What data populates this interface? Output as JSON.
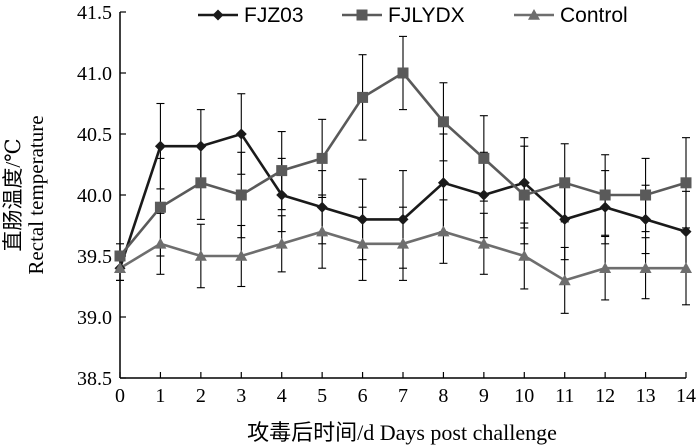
{
  "chart_data": {
    "type": "line",
    "x": [
      0,
      1,
      2,
      3,
      4,
      5,
      6,
      7,
      8,
      9,
      10,
      11,
      12,
      13,
      14
    ],
    "series": [
      {
        "name": "FJZ03",
        "marker": "diamond",
        "color": "#1a1a1a",
        "values": [
          39.4,
          40.4,
          40.4,
          40.5,
          40.0,
          39.9,
          39.8,
          39.8,
          40.1,
          40.0,
          40.1,
          39.8,
          39.9,
          39.8,
          39.7
        ],
        "errors": [
          0.1,
          0.35,
          0.3,
          0.33,
          0.3,
          0.3,
          0.33,
          0.4,
          0.4,
          0.35,
          0.37,
          0.33,
          0.3,
          0.28,
          0.33
        ]
      },
      {
        "name": "FJLYDX",
        "marker": "square",
        "color": "#5a5a5a",
        "values": [
          39.5,
          39.9,
          40.1,
          40.0,
          40.2,
          40.3,
          40.8,
          41.0,
          40.6,
          40.3,
          40.0,
          40.1,
          40.0,
          40.0,
          40.1
        ],
        "errors": [
          0.1,
          0.4,
          0.3,
          0.35,
          0.32,
          0.32,
          0.35,
          0.3,
          0.32,
          0.35,
          0.4,
          0.32,
          0.33,
          0.3,
          0.37
        ]
      },
      {
        "name": "Control",
        "marker": "triangle",
        "color": "#6e6e6e",
        "values": [
          39.4,
          39.6,
          39.5,
          39.5,
          39.6,
          39.7,
          39.6,
          39.6,
          39.7,
          39.6,
          39.5,
          39.3,
          39.4,
          39.4,
          39.4
        ],
        "errors": [
          0.1,
          0.25,
          0.26,
          0.25,
          0.23,
          0.3,
          0.3,
          0.3,
          0.26,
          0.25,
          0.27,
          0.27,
          0.26,
          0.25,
          0.3
        ]
      }
    ],
    "xlabel": "攻毒后时间/d  Days post challenge",
    "ylabel_cn": "直肠温度/℃",
    "ylabel_en": "Rectal temperature",
    "xlim": [
      0,
      14
    ],
    "ylim": [
      38.5,
      41.5
    ],
    "xticks": [
      "0",
      "1",
      "2",
      "3",
      "4",
      "5",
      "6",
      "7",
      "8",
      "9",
      "10",
      "11",
      "12",
      "13",
      "14"
    ],
    "yticks": [
      "38.5",
      "39.0",
      "39.5",
      "40.0",
      "40.5",
      "41.0",
      "41.5"
    ],
    "legend_position": "top",
    "grid": false
  }
}
